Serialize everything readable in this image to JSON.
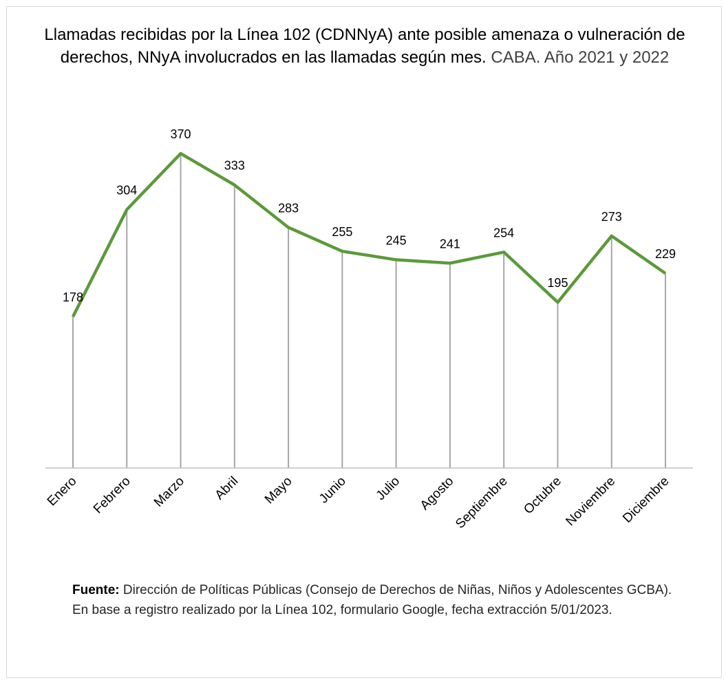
{
  "chart_data": {
    "type": "line",
    "title": "Llamadas recibidas por la Línea 102 (CDNNyA) ante posible amenaza o vulneración de derechos, NNyA involucrados en las llamadas según mes.",
    "subtitle": "CABA. Año 2021  y 2022",
    "categories": [
      "Enero",
      "Febrero",
      "Marzo",
      "Abril",
      "Mayo",
      "Junio",
      "Julio",
      "Agosto",
      "Septiembre",
      "Octubre",
      "Noviembre",
      "Diciembre"
    ],
    "values": [
      178,
      304,
      370,
      333,
      283,
      255,
      245,
      241,
      254,
      195,
      273,
      229
    ],
    "data_labels": [
      "178",
      "304",
      "370",
      "333",
      "283",
      "255",
      "245",
      "241",
      "254",
      "195",
      "273",
      "229"
    ],
    "xlabel": "",
    "ylabel": "",
    "ylim": [
      0,
      400
    ],
    "drop_lines": true,
    "grid": false,
    "legend": "none",
    "colors": {
      "line": "#5b9a3a",
      "drop_line": "#a6a6a6",
      "axis": "#bfbfbf"
    }
  },
  "source": {
    "label": "Fuente:",
    "text": " Dirección de Políticas Públicas  (Consejo de Derechos de Niñas, Niños y Adolescentes GCBA).  En base a registro realizado por la Línea 102, formulario Google, fecha extracción 5/01/2023."
  }
}
